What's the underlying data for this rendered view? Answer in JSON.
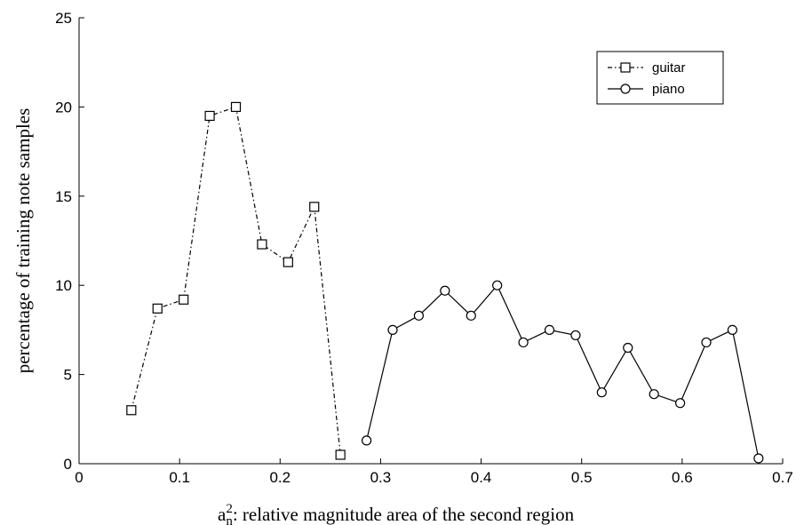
{
  "chart_data": {
    "type": "line",
    "title": "",
    "xlabel": {
      "base": "a",
      "superscript": "2",
      "subscript": "n",
      "text": ": relative  magnitude area of the second region"
    },
    "ylabel": "percentage of training note samples",
    "xlim": [
      0,
      0.7
    ],
    "ylim": [
      0,
      25
    ],
    "xticks": [
      "0",
      "0.1",
      "0.2",
      "0.3",
      "0.4",
      "0.5",
      "0.6",
      "0.7"
    ],
    "yticks": [
      "0",
      "5",
      "10",
      "15",
      "20",
      "25"
    ],
    "grid": false,
    "legend_position": "top-right",
    "series": [
      {
        "name": "guitar",
        "legend_label": "-□-  guitar",
        "marker": "square",
        "line_style": "dash-dot",
        "color": "#000000",
        "x": [
          0.052,
          0.078,
          0.104,
          0.13,
          0.156,
          0.182,
          0.208,
          0.234,
          0.26
        ],
        "y": [
          3.0,
          8.7,
          9.2,
          19.5,
          20.0,
          12.3,
          11.3,
          14.4,
          0.5
        ]
      },
      {
        "name": "piano",
        "legend_label": "-○-  piano",
        "marker": "circle",
        "line_style": "solid",
        "color": "#000000",
        "x": [
          0.286,
          0.312,
          0.338,
          0.364,
          0.39,
          0.416,
          0.442,
          0.468,
          0.494,
          0.52,
          0.546,
          0.572,
          0.598,
          0.624,
          0.65,
          0.676
        ],
        "y": [
          1.3,
          7.5,
          8.3,
          9.7,
          8.3,
          10.0,
          6.8,
          7.5,
          7.2,
          4.0,
          6.5,
          3.9,
          3.4,
          6.8,
          7.5,
          0.3
        ]
      }
    ]
  }
}
